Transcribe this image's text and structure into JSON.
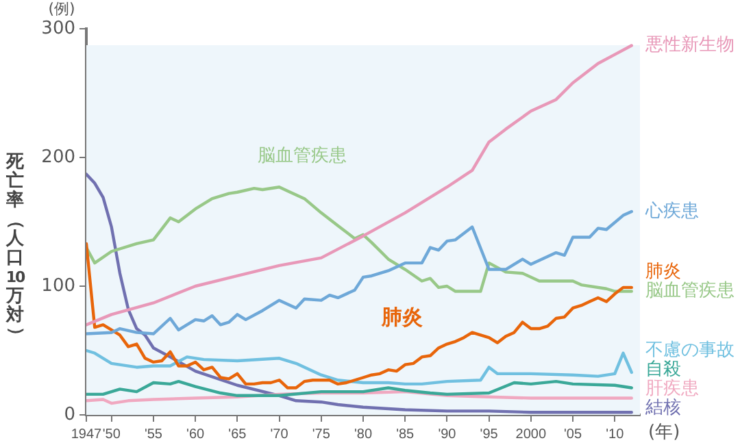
{
  "chart_data": {
    "type": "line",
    "ylabel": "死亡率（人口10万対）",
    "xlabel": "(年)",
    "xlim": [
      1947,
      2013
    ],
    "xticks": [
      {
        "value": 1947,
        "label": "1947"
      },
      {
        "value": 1950,
        "label": "'50"
      },
      {
        "value": 1955,
        "label": "'55"
      },
      {
        "value": 1960,
        "label": "'60"
      },
      {
        "value": 1965,
        "label": "'65"
      },
      {
        "value": 1970,
        "label": "'70"
      },
      {
        "value": 1975,
        "label": "'75"
      },
      {
        "value": 1980,
        "label": "'80"
      },
      {
        "value": 1985,
        "label": "'85"
      },
      {
        "value": 1990,
        "label": "'90"
      },
      {
        "value": 1995,
        "label": "'95"
      },
      {
        "value": 2000,
        "label": "2000"
      },
      {
        "value": 2005,
        "label": "'05"
      },
      {
        "value": 2010,
        "label": "'10"
      }
    ],
    "ylim": [
      0,
      300
    ],
    "yticks": [
      0,
      100,
      200,
      300
    ],
    "marker": "none",
    "line_style": "solid",
    "legend": false,
    "annotations": [
      "(例)",
      "脳血管疾患",
      "肺炎"
    ],
    "series": [
      {
        "name": "悪性新生物",
        "color": "#e898b8",
        "x": [
          1947,
          1950,
          1955,
          1960,
          1965,
          1970,
          1975,
          1980,
          1985,
          1990,
          1993,
          1995,
          1997,
          2000,
          2003,
          2005,
          2008,
          2010,
          2012
        ],
        "values": [
          70,
          78,
          87,
          100,
          108,
          116,
          122,
          139,
          157,
          177,
          190,
          212,
          222,
          236,
          245,
          258,
          273,
          280,
          287
        ]
      },
      {
        "name": "心疾患",
        "color": "#6ea8d8",
        "x": [
          1947,
          1950,
          1951,
          1953,
          1955,
          1957,
          1958,
          1960,
          1961,
          1962,
          1963,
          1964,
          1965,
          1966,
          1968,
          1970,
          1972,
          1973,
          1975,
          1976,
          1977,
          1979,
          1980,
          1981,
          1983,
          1985,
          1987,
          1988,
          1989,
          1990,
          1991,
          1993,
          1995,
          1997,
          1999,
          2000,
          2003,
          2004,
          2005,
          2007,
          2008,
          2009,
          2011,
          2012
        ],
        "values": [
          63,
          64,
          67,
          64,
          63,
          75,
          66,
          74,
          73,
          77,
          70,
          72,
          78,
          74,
          81,
          89,
          83,
          90,
          89,
          93,
          91,
          97,
          107,
          108,
          112,
          118,
          118,
          130,
          128,
          135,
          136,
          146,
          113,
          113,
          121,
          117,
          126,
          124,
          138,
          138,
          145,
          144,
          155,
          158
        ]
      },
      {
        "name": "肺炎",
        "color": "#e8650a",
        "x": [
          1947,
          1948,
          1949,
          1950,
          1951,
          1952,
          1953,
          1954,
          1955,
          1956,
          1957,
          1958,
          1959,
          1960,
          1961,
          1962,
          1963,
          1964,
          1965,
          1966,
          1967,
          1968,
          1969,
          1970,
          1971,
          1972,
          1973,
          1974,
          1975,
          1976,
          1977,
          1978,
          1979,
          1980,
          1981,
          1982,
          1983,
          1984,
          1985,
          1986,
          1987,
          1988,
          1989,
          1990,
          1991,
          1992,
          1993,
          1994,
          1995,
          1996,
          1997,
          1998,
          1999,
          2000,
          2001,
          2002,
          2003,
          2004,
          2005,
          2006,
          2007,
          2008,
          2009,
          2010,
          2011,
          2012
        ],
        "values": [
          133,
          68,
          70,
          66,
          62,
          53,
          55,
          44,
          41,
          42,
          49,
          38,
          38,
          41,
          35,
          37,
          29,
          28,
          32,
          24,
          24,
          25,
          25,
          27,
          21,
          21,
          26,
          27,
          27,
          27,
          24,
          25,
          27,
          29,
          31,
          32,
          35,
          34,
          39,
          40,
          45,
          46,
          52,
          55,
          57,
          60,
          64,
          62,
          60,
          56,
          61,
          64,
          72,
          67,
          67,
          69,
          75,
          76,
          83,
          85,
          88,
          91,
          88,
          94,
          99,
          99
        ]
      },
      {
        "name": "脳血管疾患",
        "color": "#98c888",
        "x": [
          1947,
          1948,
          1950,
          1953,
          1955,
          1957,
          1958,
          1960,
          1962,
          1964,
          1965,
          1967,
          1968,
          1970,
          1971,
          1973,
          1975,
          1977,
          1979,
          1980,
          1981,
          1983,
          1985,
          1987,
          1988,
          1989,
          1990,
          1991,
          1994,
          1995,
          1997,
          1999,
          2001,
          2005,
          2006,
          2009,
          2010,
          2012
        ],
        "values": [
          130,
          118,
          127,
          133,
          136,
          153,
          150,
          160,
          168,
          172,
          173,
          176,
          175,
          177,
          174,
          168,
          157,
          147,
          137,
          140,
          134,
          121,
          113,
          104,
          106,
          99,
          100,
          96,
          96,
          118,
          111,
          110,
          104,
          104,
          101,
          98,
          96,
          96
        ]
      },
      {
        "name": "不慮の事故",
        "color": "#70c0e0",
        "x": [
          1947,
          1948,
          1950,
          1953,
          1955,
          1957,
          1959,
          1961,
          1965,
          1970,
          1972,
          1975,
          1977,
          1980,
          1983,
          1985,
          1987,
          1990,
          1994,
          1995,
          1996,
          2000,
          2005,
          2008,
          2010,
          2011,
          2012
        ],
        "values": [
          50,
          48,
          40,
          37,
          38,
          38,
          45,
          43,
          42,
          44,
          40,
          31,
          27,
          25,
          25,
          24,
          24,
          26,
          27,
          37,
          32,
          32,
          31,
          30,
          32,
          48,
          33
        ]
      },
      {
        "name": "自殺",
        "color": "#3aa898",
        "x": [
          1947,
          1949,
          1951,
          1953,
          1955,
          1957,
          1958,
          1960,
          1963,
          1965,
          1968,
          1970,
          1975,
          1980,
          1983,
          1985,
          1988,
          1990,
          1995,
          1998,
          2000,
          2003,
          2005,
          2010,
          2012
        ],
        "values": [
          16,
          16,
          20,
          18,
          25,
          24,
          26,
          22,
          17,
          15,
          15,
          15,
          18,
          18,
          21,
          19,
          17,
          16,
          17,
          25,
          24,
          26,
          24,
          23,
          21
        ]
      },
      {
        "name": "肝疾患",
        "color": "#f0a8c0",
        "x": [
          1947,
          1949,
          1950,
          1952,
          1955,
          1960,
          1965,
          1970,
          1975,
          1980,
          1985,
          1990,
          1995,
          2000,
          2005,
          2012
        ],
        "values": [
          11,
          12,
          9,
          11,
          12,
          13,
          14,
          16,
          17,
          17,
          18,
          15,
          14,
          13,
          13,
          13
        ]
      },
      {
        "name": "結核",
        "color": "#7070b0",
        "x": [
          1947,
          1948,
          1949,
          1950,
          1951,
          1952,
          1953,
          1954,
          1955,
          1957,
          1960,
          1965,
          1970,
          1972,
          1975,
          1977,
          1980,
          1985,
          1990,
          1995,
          2000,
          2012
        ],
        "values": [
          187,
          180,
          169,
          146,
          110,
          82,
          67,
          62,
          52,
          45,
          34,
          23,
          15,
          11,
          10,
          8,
          6,
          4,
          3,
          3,
          2,
          2
        ]
      }
    ]
  }
}
